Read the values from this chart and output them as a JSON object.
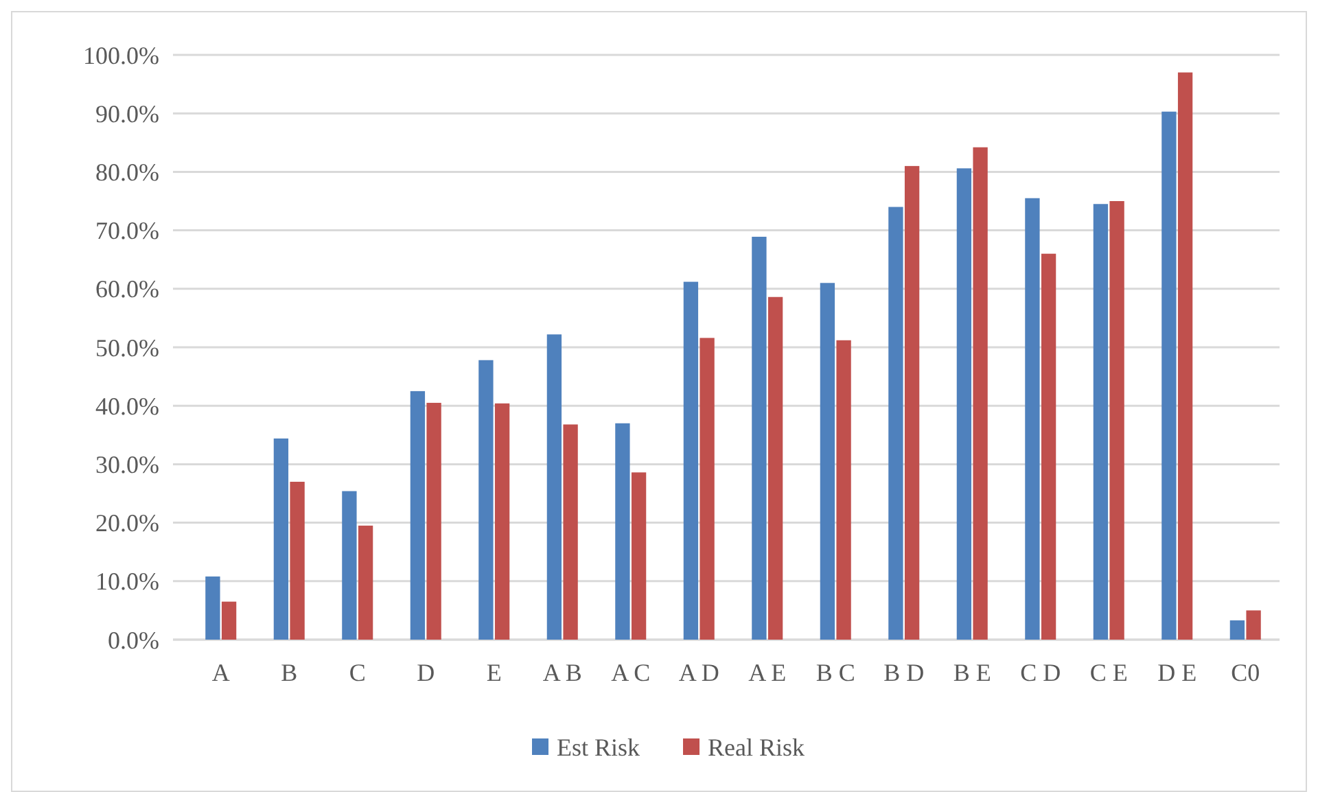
{
  "chart_data": {
    "type": "bar",
    "categories": [
      "A",
      "B",
      "C",
      "D",
      "E",
      "A B",
      "A C",
      "A D",
      "A E",
      "B C",
      "B D",
      "B E",
      "C D",
      "C E",
      "D E",
      "C0"
    ],
    "series": [
      {
        "name": "Est Risk",
        "color": "#4f81bd",
        "values": [
          10.8,
          34.4,
          25.4,
          42.5,
          47.8,
          52.2,
          37.0,
          61.2,
          68.9,
          61.0,
          74.0,
          80.6,
          75.5,
          74.5,
          90.3,
          3.3
        ]
      },
      {
        "name": "Real Risk",
        "color": "#c0504d",
        "values": [
          6.5,
          27.0,
          19.5,
          40.5,
          40.4,
          36.8,
          28.6,
          51.6,
          58.6,
          51.2,
          81.0,
          84.2,
          66.0,
          75.0,
          97.0,
          5.0
        ]
      }
    ],
    "ylim": [
      0,
      100
    ],
    "yticks": [
      {
        "value": 0,
        "label": "0.0%"
      },
      {
        "value": 10,
        "label": "10.0%"
      },
      {
        "value": 20,
        "label": "20.0%"
      },
      {
        "value": 30,
        "label": "30.0%"
      },
      {
        "value": 40,
        "label": "40.0%"
      },
      {
        "value": 50,
        "label": "50.0%"
      },
      {
        "value": 60,
        "label": "60.0%"
      },
      {
        "value": 70,
        "label": "70.0%"
      },
      {
        "value": 80,
        "label": "80.0%"
      },
      {
        "value": 90,
        "label": "90.0%"
      },
      {
        "value": 100,
        "label": "100.0%"
      }
    ],
    "grid": "y",
    "legend": "bottom"
  }
}
